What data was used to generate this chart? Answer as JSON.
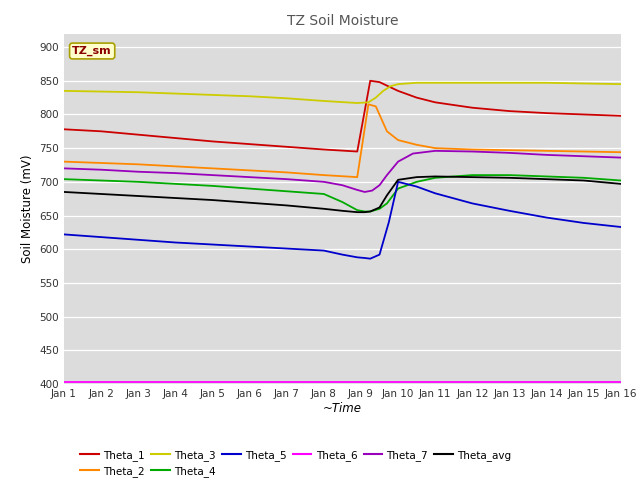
{
  "title": "TZ Soil Moisture",
  "xlabel": "~Time",
  "ylabel": "Soil Moisture (mV)",
  "ylim": [
    400,
    920
  ],
  "yticks": [
    400,
    450,
    500,
    550,
    600,
    650,
    700,
    750,
    800,
    850,
    900
  ],
  "xtick_labels": [
    "Jan 1",
    "Jan 2",
    "Jan 3",
    "Jan 4",
    "Jan 5",
    "Jan 6",
    "Jan 7",
    "Jan 8",
    "Jan 9",
    "Jan 10",
    "Jan 11",
    "Jan 12",
    "Jan 13",
    "Jan 14",
    "Jan 15",
    "Jan 16"
  ],
  "fig_bg_color": "#ffffff",
  "plot_bg_color": "#dcdcdc",
  "label_box": "TZ_sm",
  "series": {
    "Theta_1": {
      "color": "#cc0000",
      "points": [
        [
          0,
          778
        ],
        [
          1,
          775
        ],
        [
          2,
          770
        ],
        [
          3,
          765
        ],
        [
          4,
          760
        ],
        [
          5,
          756
        ],
        [
          6,
          752
        ],
        [
          7,
          748
        ],
        [
          7.9,
          745
        ],
        [
          8.25,
          850
        ],
        [
          8.5,
          848
        ],
        [
          9,
          835
        ],
        [
          9.5,
          825
        ],
        [
          10,
          818
        ],
        [
          11,
          810
        ],
        [
          12,
          805
        ],
        [
          13,
          802
        ],
        [
          14,
          800
        ],
        [
          15,
          798
        ]
      ]
    },
    "Theta_2": {
      "color": "#ff8800",
      "points": [
        [
          0,
          730
        ],
        [
          1,
          728
        ],
        [
          2,
          726
        ],
        [
          3,
          723
        ],
        [
          4,
          720
        ],
        [
          5,
          717
        ],
        [
          6,
          714
        ],
        [
          7,
          710
        ],
        [
          7.9,
          707
        ],
        [
          8.2,
          815
        ],
        [
          8.4,
          812
        ],
        [
          8.7,
          775
        ],
        [
          9,
          762
        ],
        [
          9.5,
          755
        ],
        [
          10,
          750
        ],
        [
          11,
          748
        ],
        [
          12,
          747
        ],
        [
          13,
          746
        ],
        [
          14,
          745
        ],
        [
          15,
          744
        ]
      ]
    },
    "Theta_3": {
      "color": "#cccc00",
      "points": [
        [
          0,
          835
        ],
        [
          1,
          834
        ],
        [
          2,
          833
        ],
        [
          3,
          831
        ],
        [
          4,
          829
        ],
        [
          5,
          827
        ],
        [
          6,
          824
        ],
        [
          7,
          820
        ],
        [
          7.9,
          817
        ],
        [
          8.2,
          818
        ],
        [
          8.4,
          825
        ],
        [
          8.6,
          835
        ],
        [
          8.8,
          842
        ],
        [
          9,
          845
        ],
        [
          9.5,
          847
        ],
        [
          10,
          847
        ],
        [
          11,
          847
        ],
        [
          12,
          847
        ],
        [
          13,
          847
        ],
        [
          14,
          846
        ],
        [
          15,
          845
        ]
      ]
    },
    "Theta_4": {
      "color": "#00aa00",
      "points": [
        [
          0,
          704
        ],
        [
          1,
          702
        ],
        [
          2,
          700
        ],
        [
          3,
          697
        ],
        [
          4,
          694
        ],
        [
          5,
          690
        ],
        [
          6,
          686
        ],
        [
          7,
          682
        ],
        [
          7.5,
          670
        ],
        [
          7.9,
          658
        ],
        [
          8.1,
          656
        ],
        [
          8.25,
          656
        ],
        [
          8.5,
          660
        ],
        [
          8.7,
          668
        ],
        [
          9,
          690
        ],
        [
          9.5,
          700
        ],
        [
          10,
          706
        ],
        [
          11,
          710
        ],
        [
          12,
          710
        ],
        [
          13,
          708
        ],
        [
          14,
          706
        ],
        [
          15,
          702
        ]
      ]
    },
    "Theta_5": {
      "color": "#0000cc",
      "points": [
        [
          0,
          622
        ],
        [
          1,
          618
        ],
        [
          2,
          614
        ],
        [
          3,
          610
        ],
        [
          4,
          607
        ],
        [
          5,
          604
        ],
        [
          6,
          601
        ],
        [
          7,
          598
        ],
        [
          7.5,
          592
        ],
        [
          7.9,
          588
        ],
        [
          8.1,
          587
        ],
        [
          8.25,
          586
        ],
        [
          8.5,
          592
        ],
        [
          8.75,
          640
        ],
        [
          9,
          700
        ],
        [
          9.5,
          693
        ],
        [
          10,
          683
        ],
        [
          11,
          668
        ],
        [
          12,
          657
        ],
        [
          13,
          647
        ],
        [
          14,
          639
        ],
        [
          15,
          633
        ]
      ]
    },
    "Theta_6": {
      "color": "#ff00ff",
      "points": [
        [
          0,
          403
        ],
        [
          1,
          403
        ],
        [
          2,
          403
        ],
        [
          3,
          403
        ],
        [
          4,
          403
        ],
        [
          5,
          403
        ],
        [
          6,
          403
        ],
        [
          7,
          403
        ],
        [
          8,
          403
        ],
        [
          9,
          403
        ],
        [
          10,
          403
        ],
        [
          11,
          403
        ],
        [
          12,
          403
        ],
        [
          13,
          403
        ],
        [
          14,
          403
        ],
        [
          15,
          403
        ]
      ]
    },
    "Theta_7": {
      "color": "#9900bb",
      "points": [
        [
          0,
          720
        ],
        [
          1,
          718
        ],
        [
          2,
          715
        ],
        [
          3,
          713
        ],
        [
          4,
          710
        ],
        [
          5,
          707
        ],
        [
          6,
          704
        ],
        [
          7,
          700
        ],
        [
          7.5,
          695
        ],
        [
          7.9,
          688
        ],
        [
          8.1,
          685
        ],
        [
          8.3,
          687
        ],
        [
          8.5,
          695
        ],
        [
          8.7,
          710
        ],
        [
          9,
          730
        ],
        [
          9.4,
          742
        ],
        [
          10,
          746
        ],
        [
          11,
          745
        ],
        [
          12,
          743
        ],
        [
          13,
          740
        ],
        [
          14,
          738
        ],
        [
          15,
          736
        ]
      ]
    },
    "Theta_avg": {
      "color": "#000000",
      "points": [
        [
          0,
          685
        ],
        [
          1,
          682
        ],
        [
          2,
          679
        ],
        [
          3,
          676
        ],
        [
          4,
          673
        ],
        [
          5,
          669
        ],
        [
          6,
          665
        ],
        [
          7,
          660
        ],
        [
          7.5,
          657
        ],
        [
          7.9,
          655
        ],
        [
          8.1,
          655
        ],
        [
          8.25,
          656
        ],
        [
          8.5,
          662
        ],
        [
          8.7,
          680
        ],
        [
          9,
          703
        ],
        [
          9.5,
          707
        ],
        [
          10,
          708
        ],
        [
          11,
          707
        ],
        [
          12,
          706
        ],
        [
          13,
          704
        ],
        [
          14,
          702
        ],
        [
          15,
          697
        ]
      ]
    }
  },
  "legend_entries": [
    {
      "label": "Theta_1",
      "color": "#cc0000"
    },
    {
      "label": "Theta_2",
      "color": "#ff8800"
    },
    {
      "label": "Theta_3",
      "color": "#cccc00"
    },
    {
      "label": "Theta_4",
      "color": "#00aa00"
    },
    {
      "label": "Theta_5",
      "color": "#0000cc"
    },
    {
      "label": "Theta_6",
      "color": "#ff00ff"
    },
    {
      "label": "Theta_7",
      "color": "#9900bb"
    },
    {
      "label": "Theta_avg",
      "color": "#000000"
    }
  ]
}
